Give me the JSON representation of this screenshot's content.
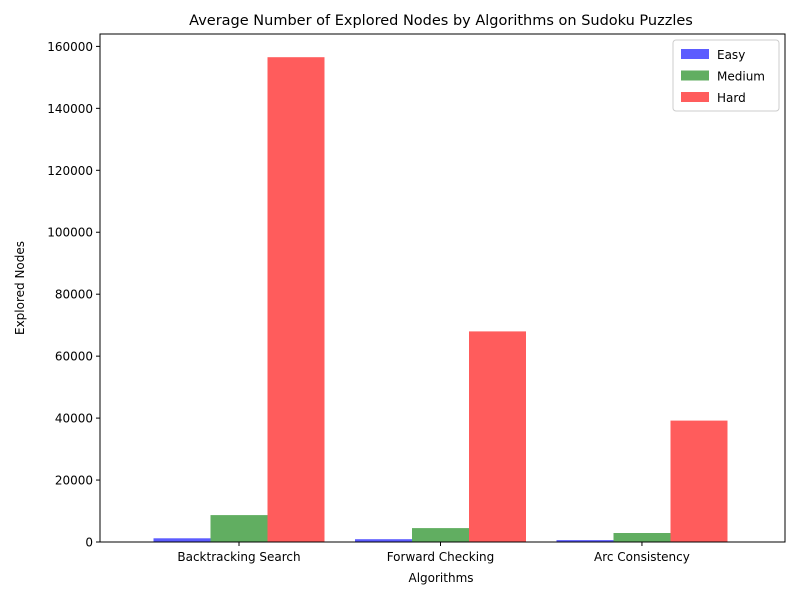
{
  "chart_data": {
    "type": "bar",
    "title": "Average Number of Explored Nodes by Algorithms on Sudoku Puzzles",
    "xlabel": "Algorithms",
    "ylabel": "Explored Nodes",
    "categories": [
      "Backtracking Search",
      "Forward Checking",
      "Arc Consistency"
    ],
    "series": [
      {
        "name": "Easy",
        "color": "#3333ff",
        "values": [
          1200,
          900,
          600
        ]
      },
      {
        "name": "Medium",
        "color": "#3a9a3a",
        "values": [
          8700,
          4500,
          2900
        ]
      },
      {
        "name": "Hard",
        "color": "#ff3333",
        "values": [
          156500,
          68000,
          39200
        ]
      }
    ],
    "ylim": [
      0,
      164000
    ],
    "yticks": [
      0,
      20000,
      40000,
      60000,
      80000,
      100000,
      120000,
      140000,
      160000
    ],
    "grid": false,
    "legend": "top-right"
  }
}
